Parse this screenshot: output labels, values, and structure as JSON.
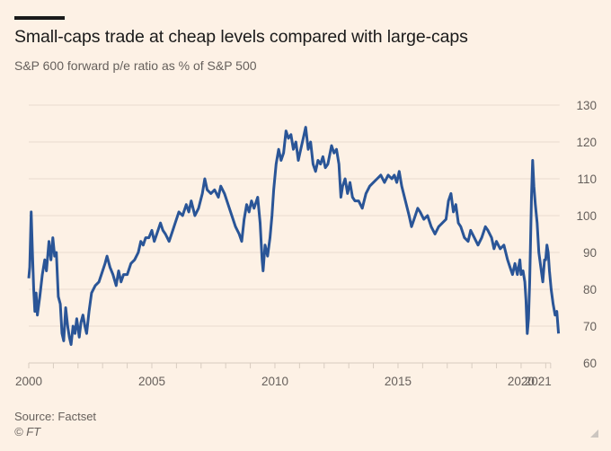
{
  "header": {
    "title": "Small-caps trade at cheap levels compared with large-caps",
    "subtitle": "S&P 600 forward p/e ratio as % of S&P 500"
  },
  "footer": {
    "source": "Source: Factset",
    "copyright": "© FT"
  },
  "colors": {
    "background": "#fdf1e5",
    "line": "#2a5597",
    "grid": "#e9dcd0",
    "text_muted": "#66605c"
  },
  "chart_data": {
    "type": "line",
    "title": "Small-caps trade at cheap levels compared with large-caps",
    "subtitle": "S&P 600 forward p/e ratio as % of S&P 500",
    "xlabel": "",
    "ylabel": "",
    "xlim": [
      2000,
      2021.2
    ],
    "ylim": [
      60,
      130
    ],
    "yticks": [
      60,
      70,
      80,
      90,
      100,
      110,
      120,
      130
    ],
    "xtick_labels": [
      "2000",
      "2005",
      "2010",
      "2015",
      "2020",
      "2021"
    ],
    "xtick_positions": [
      2000,
      2005,
      2010,
      2015,
      2020,
      2021.2
    ],
    "minor_xticks_yearly": true,
    "grid": true,
    "y_axis_side": "right",
    "series": [
      {
        "name": "S&P 600 forward p/e as % of S&P 500",
        "points": [
          [
            2000.0,
            83
          ],
          [
            2000.04,
            86
          ],
          [
            2000.1,
            101
          ],
          [
            2000.15,
            90
          ],
          [
            2000.2,
            80
          ],
          [
            2000.25,
            74
          ],
          [
            2000.3,
            79
          ],
          [
            2000.35,
            73
          ],
          [
            2000.45,
            78
          ],
          [
            2000.55,
            84
          ],
          [
            2000.65,
            88
          ],
          [
            2000.72,
            85
          ],
          [
            2000.82,
            93
          ],
          [
            2000.9,
            88
          ],
          [
            2000.98,
            94
          ],
          [
            2001.05,
            89
          ],
          [
            2001.12,
            90
          ],
          [
            2001.2,
            78
          ],
          [
            2001.28,
            76
          ],
          [
            2001.35,
            68
          ],
          [
            2001.42,
            66
          ],
          [
            2001.5,
            75
          ],
          [
            2001.58,
            70
          ],
          [
            2001.65,
            67
          ],
          [
            2001.72,
            65
          ],
          [
            2001.8,
            70
          ],
          [
            2001.88,
            68
          ],
          [
            2001.95,
            72
          ],
          [
            2002.05,
            67
          ],
          [
            2002.12,
            71
          ],
          [
            2002.2,
            73
          ],
          [
            2002.28,
            70
          ],
          [
            2002.35,
            68
          ],
          [
            2002.45,
            74
          ],
          [
            2002.55,
            79
          ],
          [
            2002.7,
            81
          ],
          [
            2002.85,
            82
          ],
          [
            2003.0,
            85
          ],
          [
            2003.1,
            87
          ],
          [
            2003.18,
            89
          ],
          [
            2003.3,
            86
          ],
          [
            2003.42,
            84
          ],
          [
            2003.55,
            81
          ],
          [
            2003.65,
            85
          ],
          [
            2003.75,
            82
          ],
          [
            2003.85,
            84
          ],
          [
            2004.0,
            84
          ],
          [
            2004.15,
            87
          ],
          [
            2004.3,
            88
          ],
          [
            2004.45,
            90
          ],
          [
            2004.55,
            93
          ],
          [
            2004.65,
            92
          ],
          [
            2004.75,
            94
          ],
          [
            2004.88,
            94
          ],
          [
            2005.0,
            96
          ],
          [
            2005.1,
            93
          ],
          [
            2005.2,
            95
          ],
          [
            2005.35,
            98
          ],
          [
            2005.45,
            96
          ],
          [
            2005.55,
            95
          ],
          [
            2005.7,
            93
          ],
          [
            2005.85,
            96
          ],
          [
            2005.95,
            98
          ],
          [
            2006.1,
            101
          ],
          [
            2006.25,
            100
          ],
          [
            2006.4,
            103
          ],
          [
            2006.5,
            101
          ],
          [
            2006.6,
            104
          ],
          [
            2006.75,
            100
          ],
          [
            2006.9,
            102
          ],
          [
            2007.05,
            106
          ],
          [
            2007.15,
            110
          ],
          [
            2007.25,
            107
          ],
          [
            2007.4,
            106
          ],
          [
            2007.55,
            107
          ],
          [
            2007.7,
            105
          ],
          [
            2007.8,
            108
          ],
          [
            2007.95,
            106
          ],
          [
            2008.1,
            103
          ],
          [
            2008.25,
            100
          ],
          [
            2008.4,
            97
          ],
          [
            2008.55,
            95
          ],
          [
            2008.65,
            93
          ],
          [
            2008.75,
            99
          ],
          [
            2008.85,
            103
          ],
          [
            2008.95,
            101
          ],
          [
            2009.05,
            104
          ],
          [
            2009.15,
            102
          ],
          [
            2009.3,
            105
          ],
          [
            2009.4,
            98
          ],
          [
            2009.48,
            88
          ],
          [
            2009.52,
            85
          ],
          [
            2009.6,
            92
          ],
          [
            2009.7,
            89
          ],
          [
            2009.8,
            94
          ],
          [
            2009.88,
            100
          ],
          [
            2009.95,
            107
          ],
          [
            2010.05,
            114
          ],
          [
            2010.15,
            118
          ],
          [
            2010.25,
            115
          ],
          [
            2010.35,
            117
          ],
          [
            2010.45,
            123
          ],
          [
            2010.55,
            121
          ],
          [
            2010.65,
            122
          ],
          [
            2010.75,
            118
          ],
          [
            2010.85,
            120
          ],
          [
            2010.95,
            115
          ],
          [
            2011.05,
            118
          ],
          [
            2011.15,
            121
          ],
          [
            2011.25,
            124
          ],
          [
            2011.35,
            118
          ],
          [
            2011.45,
            120
          ],
          [
            2011.55,
            114
          ],
          [
            2011.65,
            112
          ],
          [
            2011.75,
            115
          ],
          [
            2011.85,
            114
          ],
          [
            2011.95,
            116
          ],
          [
            2012.05,
            113
          ],
          [
            2012.15,
            114
          ],
          [
            2012.3,
            119
          ],
          [
            2012.4,
            117
          ],
          [
            2012.5,
            118
          ],
          [
            2012.6,
            114
          ],
          [
            2012.68,
            105
          ],
          [
            2012.75,
            108
          ],
          [
            2012.85,
            110
          ],
          [
            2012.95,
            106
          ],
          [
            2013.05,
            109
          ],
          [
            2013.15,
            105
          ],
          [
            2013.25,
            104
          ],
          [
            2013.4,
            104
          ],
          [
            2013.55,
            102
          ],
          [
            2013.7,
            106
          ],
          [
            2013.85,
            108
          ],
          [
            2014.0,
            109
          ],
          [
            2014.15,
            110
          ],
          [
            2014.3,
            111
          ],
          [
            2014.45,
            109
          ],
          [
            2014.6,
            111
          ],
          [
            2014.75,
            110
          ],
          [
            2014.85,
            111
          ],
          [
            2014.95,
            109
          ],
          [
            2015.05,
            112
          ],
          [
            2015.15,
            108
          ],
          [
            2015.3,
            104
          ],
          [
            2015.45,
            100
          ],
          [
            2015.55,
            97
          ],
          [
            2015.65,
            99
          ],
          [
            2015.8,
            102
          ],
          [
            2015.9,
            101
          ],
          [
            2016.05,
            99
          ],
          [
            2016.2,
            100
          ],
          [
            2016.35,
            97
          ],
          [
            2016.5,
            95
          ],
          [
            2016.65,
            97
          ],
          [
            2016.8,
            98
          ],
          [
            2016.95,
            99
          ],
          [
            2017.05,
            104
          ],
          [
            2017.15,
            106
          ],
          [
            2017.25,
            101
          ],
          [
            2017.35,
            103
          ],
          [
            2017.45,
            98
          ],
          [
            2017.55,
            97
          ],
          [
            2017.7,
            94
          ],
          [
            2017.85,
            93
          ],
          [
            2017.95,
            96
          ],
          [
            2018.1,
            94
          ],
          [
            2018.25,
            92
          ],
          [
            2018.4,
            94
          ],
          [
            2018.55,
            97
          ],
          [
            2018.65,
            96
          ],
          [
            2018.8,
            94
          ],
          [
            2018.9,
            91
          ],
          [
            2019.0,
            93
          ],
          [
            2019.15,
            91
          ],
          [
            2019.3,
            92
          ],
          [
            2019.45,
            88
          ],
          [
            2019.55,
            86
          ],
          [
            2019.65,
            84
          ],
          [
            2019.75,
            87
          ],
          [
            2019.85,
            84
          ],
          [
            2019.95,
            88
          ],
          [
            2020.0,
            84
          ],
          [
            2020.08,
            85
          ],
          [
            2020.15,
            82
          ],
          [
            2020.2,
            77
          ],
          [
            2020.25,
            68
          ],
          [
            2020.3,
            72
          ],
          [
            2020.35,
            82
          ],
          [
            2020.42,
            105
          ],
          [
            2020.47,
            115
          ],
          [
            2020.52,
            108
          ],
          [
            2020.58,
            103
          ],
          [
            2020.65,
            98
          ],
          [
            2020.72,
            90
          ],
          [
            2020.8,
            86
          ],
          [
            2020.88,
            82
          ],
          [
            2020.95,
            88
          ],
          [
            2021.0,
            88
          ],
          [
            2021.05,
            92
          ],
          [
            2021.1,
            90
          ],
          [
            2021.15,
            85
          ],
          [
            2021.22,
            80
          ],
          [
            2021.3,
            76
          ],
          [
            2021.38,
            73
          ],
          [
            2021.45,
            74
          ],
          [
            2021.52,
            68
          ]
        ]
      }
    ]
  }
}
